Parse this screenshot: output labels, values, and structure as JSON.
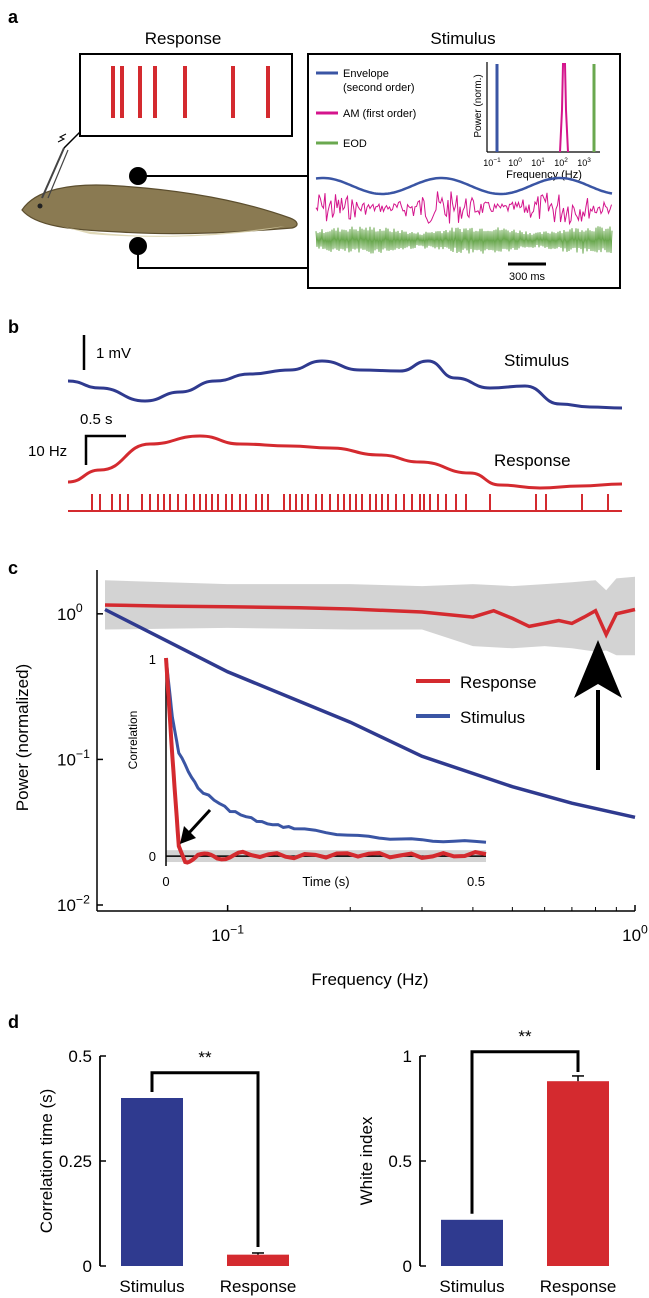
{
  "panels": {
    "a": {
      "letter": "a",
      "response_title": "Response",
      "stimulus_title": "Stimulus",
      "legend": [
        {
          "line1": "Envelope",
          "line2": "(second order)",
          "color": "#3a55a4"
        },
        {
          "line1": "AM (first order)",
          "line2": "",
          "color": "#d4148c"
        },
        {
          "line1": "EOD",
          "line2": "",
          "color": "#6aa84f"
        }
      ],
      "inset_ylabel": "Power (norm.)",
      "inset_xlabel": "Frequency (Hz)",
      "inset_ticks": [
        {
          "base": "10",
          "exp": "−1"
        },
        {
          "base": "10",
          "exp": "0"
        },
        {
          "base": "10",
          "exp": "1"
        },
        {
          "base": "10",
          "exp": "2"
        },
        {
          "base": "10",
          "exp": "3"
        }
      ],
      "scale_label": "300 ms",
      "spike_count": 7,
      "icons": [
        "fish-image",
        "electrode-icon",
        "stimulus-electrode-icon"
      ]
    },
    "b": {
      "letter": "b",
      "mv_label": "1 mV",
      "time_label": "0.5 s",
      "hz_label": "10 Hz",
      "stimulus_label": "Stimulus",
      "response_label": "Response"
    },
    "c": {
      "letter": "c",
      "legend_response": "Response",
      "legend_stimulus": "Stimulus",
      "inset_ylabel": "Correlation",
      "inset_xlabel": "Time (s)",
      "inset_ytick_top": "1",
      "inset_ytick_zero": "0",
      "inset_xtick_left": "0",
      "inset_xtick_right": "0.5"
    },
    "d": {
      "letter": "d",
      "significance": "**"
    }
  },
  "colors": {
    "stimulus": "#2f3a8f",
    "response": "#d42a2f",
    "envelope": "#3a55a4",
    "am": "#d4148c",
    "eod": "#6aa84f",
    "band": "#d3d3d3"
  },
  "chart_data": [
    {
      "id": "c-power-spectrum",
      "type": "line",
      "xlabel": "Frequency (Hz)",
      "ylabel": "Power (normalized)",
      "xscale": "log",
      "yscale": "log",
      "xlim": [
        0.05,
        1
      ],
      "ylim": [
        0.01,
        2
      ],
      "xticks": [
        {
          "value": 0.1,
          "base": "10",
          "exp": "−1"
        },
        {
          "value": 1,
          "base": "10",
          "exp": "0"
        }
      ],
      "yticks": [
        {
          "value": 1,
          "base": "10",
          "exp": "0"
        },
        {
          "value": 0.1,
          "base": "10",
          "exp": "−1"
        },
        {
          "value": 0.01,
          "base": "10",
          "exp": "−2"
        }
      ],
      "series": [
        {
          "name": "Response",
          "x": [
            0.05,
            0.07,
            0.1,
            0.15,
            0.2,
            0.3,
            0.4,
            0.45,
            0.5,
            0.55,
            0.6,
            0.65,
            0.7,
            0.75,
            0.8,
            0.85,
            0.9,
            1.0
          ],
          "values": [
            1.15,
            1.13,
            1.12,
            1.1,
            1.08,
            1.03,
            0.95,
            1.05,
            0.93,
            0.82,
            0.86,
            0.9,
            0.86,
            0.95,
            1.05,
            0.72,
            1.0,
            1.07
          ]
        },
        {
          "name": "Stimulus",
          "x": [
            0.05,
            0.1,
            0.2,
            0.3,
            0.5,
            0.7,
            1.0
          ],
          "values": [
            1.07,
            0.4,
            0.18,
            0.105,
            0.065,
            0.05,
            0.04
          ]
        }
      ],
      "band": {
        "x": [
          0.05,
          0.1,
          0.2,
          0.3,
          0.4,
          0.5,
          0.6,
          0.7,
          0.8,
          0.85,
          0.9,
          1.0
        ],
        "upper": [
          1.7,
          1.6,
          1.6,
          1.55,
          1.6,
          1.55,
          1.6,
          1.65,
          1.7,
          1.45,
          1.75,
          1.8
        ],
        "lower": [
          0.78,
          0.8,
          0.78,
          0.78,
          0.6,
          0.58,
          0.6,
          0.58,
          0.55,
          0.56,
          0.52,
          0.52
        ]
      },
      "legend": "right"
    },
    {
      "id": "c-inset-correlation",
      "type": "line",
      "xlabel": "Time (s)",
      "ylabel": "Correlation",
      "xlim": [
        0,
        0.5
      ],
      "ylim": [
        -0.05,
        1
      ],
      "series": [
        {
          "name": "Stimulus",
          "x": [
            0,
            0.01,
            0.02,
            0.05,
            0.1,
            0.15,
            0.2,
            0.3,
            0.4,
            0.5
          ],
          "values": [
            1.0,
            0.7,
            0.52,
            0.34,
            0.23,
            0.17,
            0.14,
            0.1,
            0.08,
            0.07
          ]
        },
        {
          "name": "Response",
          "x": [
            0,
            0.01,
            0.02,
            0.03,
            0.05,
            0.08,
            0.12,
            0.2,
            0.3,
            0.4,
            0.5
          ],
          "values": [
            1.0,
            0.5,
            0.05,
            -0.03,
            0.01,
            -0.01,
            0.01,
            0.0,
            0.01,
            0.0,
            0.01
          ]
        }
      ]
    },
    {
      "id": "d-correlation-time",
      "type": "bar",
      "categories": [
        "Stimulus",
        "Response"
      ],
      "values": [
        0.4,
        0.027
      ],
      "errors": [
        0,
        0.004
      ],
      "ylabel": "Correlation time (s)",
      "ylim": [
        0,
        0.5
      ],
      "yticks": [
        "0",
        "0.25",
        "0.5"
      ]
    },
    {
      "id": "d-white-index",
      "type": "bar",
      "categories": [
        "Stimulus",
        "Response"
      ],
      "values": [
        0.22,
        0.88
      ],
      "errors": [
        0,
        0.025
      ],
      "ylabel": "White index",
      "ylim": [
        0,
        1
      ],
      "yticks": [
        "0",
        "0.5",
        "1"
      ]
    }
  ]
}
